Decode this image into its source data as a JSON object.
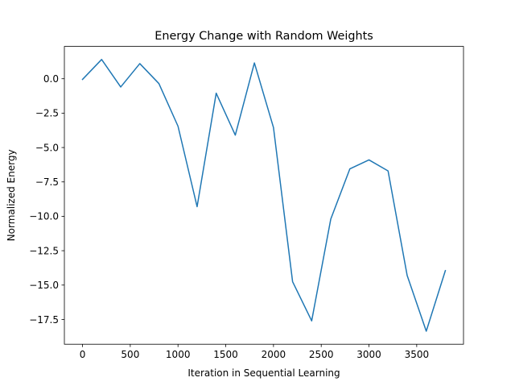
{
  "chart_data": {
    "type": "line",
    "title": "Energy Change with Random Weights",
    "xlabel": "Iteration in Sequential Learning",
    "ylabel": "Normalized Energy",
    "xlim": [
      -190,
      3990
    ],
    "ylim": [
      -19.3,
      2.35
    ],
    "x_ticks": [
      0,
      500,
      1000,
      1500,
      2000,
      2500,
      3000,
      3500
    ],
    "x_tick_labels": [
      "0",
      "500",
      "1000",
      "1500",
      "2000",
      "2500",
      "3000",
      "3500"
    ],
    "y_ticks": [
      0.0,
      -2.5,
      -5.0,
      -7.5,
      -10.0,
      -12.5,
      -15.0,
      -17.5
    ],
    "y_tick_labels": [
      "0.0",
      "−2.5",
      "−5.0",
      "−7.5",
      "−10.0",
      "−12.5",
      "−15.0",
      "−17.5"
    ],
    "grid": false,
    "legend": "none",
    "series": [
      {
        "color": "#1f77b4",
        "x": [
          0,
          200,
          400,
          600,
          800,
          1000,
          1200,
          1400,
          1600,
          1800,
          2000,
          2200,
          2400,
          2600,
          2800,
          3000,
          3200,
          3400,
          3600,
          3800
        ],
        "y": [
          -0.05,
          1.4,
          -0.6,
          1.1,
          -0.35,
          -3.45,
          -9.3,
          -1.05,
          -4.1,
          1.15,
          -3.55,
          -14.75,
          -17.6,
          -10.2,
          -6.55,
          -5.9,
          -6.7,
          -14.3,
          -18.35,
          -13.95
        ]
      }
    ]
  }
}
